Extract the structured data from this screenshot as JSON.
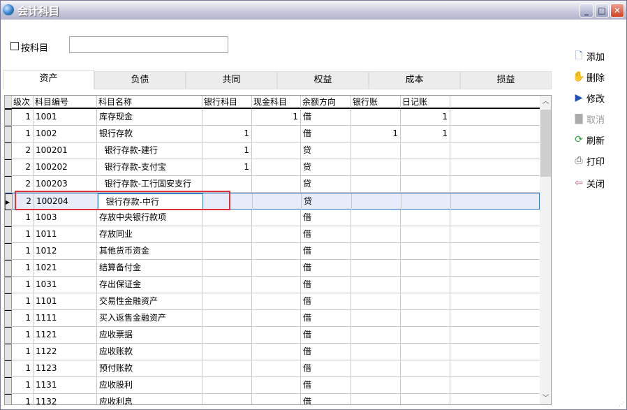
{
  "window": {
    "title": "会计科目",
    "minimize": "_",
    "maximize": "□",
    "close": "✕"
  },
  "filter": {
    "checkbox_label": "按科目",
    "checked": false,
    "value": ""
  },
  "tabs": [
    "资产",
    "负债",
    "共同",
    "权益",
    "成本",
    "损益"
  ],
  "active_tab": "资产",
  "table": {
    "columns": [
      "级次",
      "科目编号",
      "科目名称",
      "银行科目",
      "现金科目",
      "余额方向",
      "银行账",
      "日记账"
    ],
    "rows": [
      [
        "1",
        "1001",
        "库存现金",
        "",
        "1",
        "借",
        "",
        "1"
      ],
      [
        "1",
        "1002",
        "银行存款",
        "1",
        "",
        "借",
        "1",
        "1"
      ],
      [
        "2",
        "100201",
        "  银行存款-建行",
        "1",
        "",
        "贷",
        "",
        ""
      ],
      [
        "2",
        "100202",
        "  银行存款-支付宝",
        "1",
        "",
        "贷",
        "",
        ""
      ],
      [
        "2",
        "100203",
        "  银行存款-工行固安支行",
        "",
        "",
        "贷",
        "",
        ""
      ],
      [
        "2",
        "100204",
        "  银行存款-中行",
        "",
        "",
        "贷",
        "",
        ""
      ],
      [
        "1",
        "1003",
        "存放中央银行款项",
        "",
        "",
        "借",
        "",
        ""
      ],
      [
        "1",
        "1011",
        "存放同业",
        "",
        "",
        "借",
        "",
        ""
      ],
      [
        "1",
        "1012",
        "其他货币资金",
        "",
        "",
        "借",
        "",
        ""
      ],
      [
        "1",
        "1021",
        "结算备付金",
        "",
        "",
        "借",
        "",
        ""
      ],
      [
        "1",
        "1031",
        "存出保证金",
        "",
        "",
        "借",
        "",
        ""
      ],
      [
        "1",
        "1101",
        "交易性金融资产",
        "",
        "",
        "借",
        "",
        ""
      ],
      [
        "1",
        "1111",
        "买入返售金融资产",
        "",
        "",
        "借",
        "",
        ""
      ],
      [
        "1",
        "1121",
        "应收票据",
        "",
        "",
        "借",
        "",
        ""
      ],
      [
        "1",
        "1122",
        "应收账款",
        "",
        "",
        "借",
        "",
        ""
      ],
      [
        "1",
        "1123",
        "预付账款",
        "",
        "",
        "借",
        "",
        ""
      ],
      [
        "1",
        "1131",
        "应收股利",
        "",
        "",
        "借",
        "",
        ""
      ],
      [
        "1",
        "1132",
        "应收利息",
        "",
        "",
        "借",
        "",
        ""
      ]
    ],
    "selected_row": 5
  },
  "actions": [
    {
      "label": "添加",
      "icon": "new-document-icon",
      "enabled": true
    },
    {
      "label": "删除",
      "icon": "delete-hand-icon",
      "enabled": true
    },
    {
      "label": "修改",
      "icon": "edit-icon",
      "enabled": true
    },
    {
      "label": "取消",
      "icon": "cancel-icon",
      "enabled": false
    },
    {
      "label": "刷新",
      "icon": "refresh-icon",
      "enabled": true
    },
    {
      "label": "打印",
      "icon": "printer-icon",
      "enabled": true
    },
    {
      "label": "关闭",
      "icon": "exit-door-icon",
      "enabled": true
    }
  ],
  "colors": {
    "highlight_box": "#e0303a",
    "selected_row": "#e8ecfa"
  }
}
